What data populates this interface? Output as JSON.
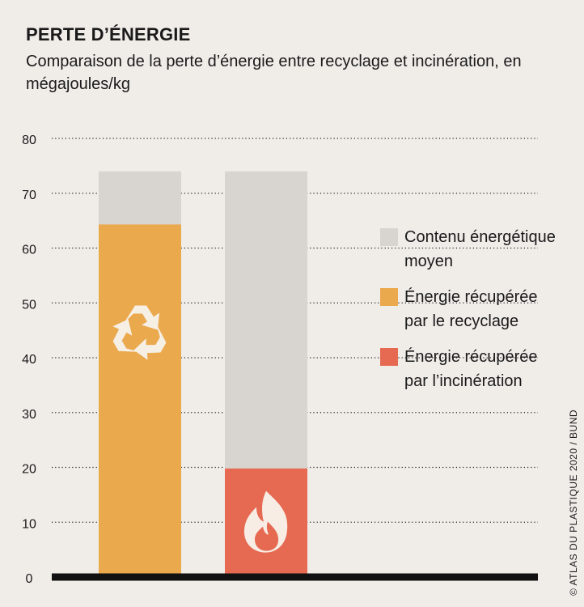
{
  "chart_data": {
    "type": "bar",
    "stacked": false,
    "title": "PERTE D’ÉNERGIE",
    "subtitle": "Comparaison de la perte d’énergie entre recyclage et incinération, en mégajoules/kg",
    "ylim": [
      0,
      80
    ],
    "yticks": [
      0,
      10,
      20,
      30,
      40,
      50,
      60,
      70,
      80
    ],
    "grid": "dotted-horizontal",
    "legend_position": "right",
    "bars": [
      {
        "icon": "recycle-icon",
        "total": 74,
        "recovered": 64.3,
        "recovered_series": 1
      },
      {
        "icon": "flame-icon",
        "total": 74,
        "recovered": 19.8,
        "recovered_series": 2
      }
    ],
    "series": [
      {
        "name": "Contenu énergétique\nmoyen",
        "color": "#d8d4cf"
      },
      {
        "name": "Énergie récupérée\npar le recyclage",
        "color": "#eba94e"
      },
      {
        "name": "Énergie récupérée\npar l’incinération",
        "color": "#e66a52"
      }
    ]
  },
  "credit": "© ATLAS DU PLASTIQUE 2020 / BUND"
}
